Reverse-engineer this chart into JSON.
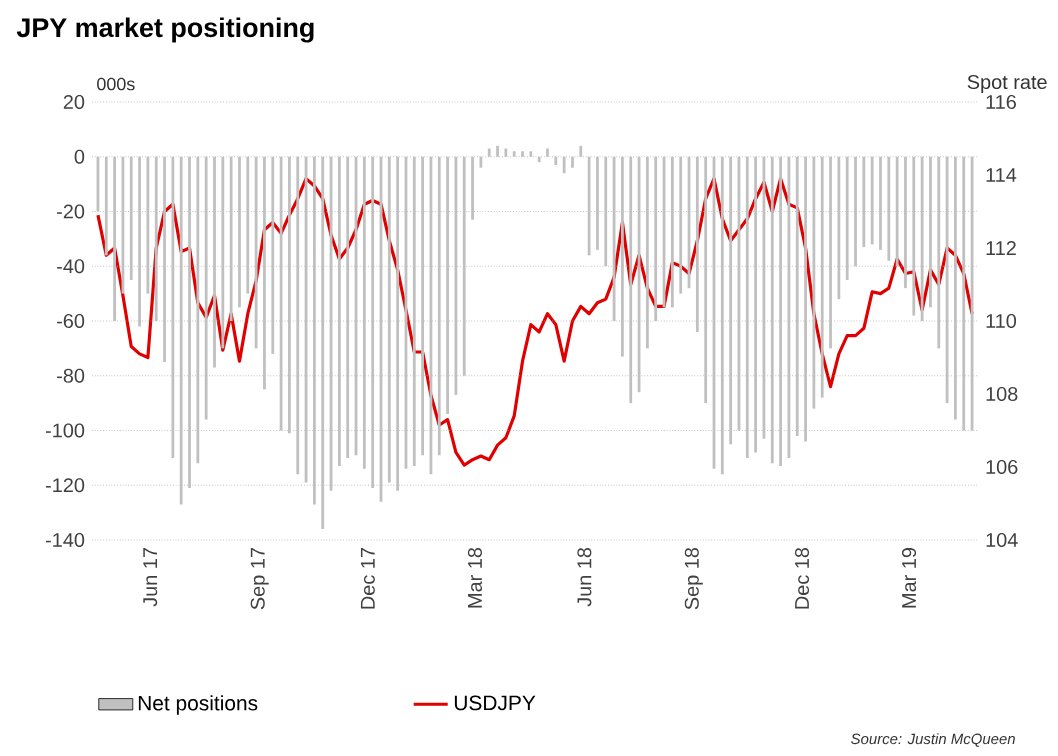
{
  "chart_data": {
    "type": "bar",
    "title": "JPY market positioning",
    "ylabel": "000s",
    "y2label": "Spot rate",
    "annotations": [
      "Source: Justin McQueen"
    ],
    "x": [
      "2017-04-18",
      "2017-04-25",
      "2017-05-02",
      "2017-05-09",
      "2017-05-16",
      "2017-05-23",
      "2017-05-30",
      "2017-06-06",
      "2017-06-13",
      "2017-06-20",
      "2017-06-27",
      "2017-07-04",
      "2017-07-11",
      "2017-07-18",
      "2017-07-25",
      "2017-08-01",
      "2017-08-08",
      "2017-08-15",
      "2017-08-22",
      "2017-08-29",
      "2017-09-05",
      "2017-09-12",
      "2017-09-19",
      "2017-09-26",
      "2017-10-03",
      "2017-10-10",
      "2017-10-17",
      "2017-10-24",
      "2017-10-31",
      "2017-11-07",
      "2017-11-14",
      "2017-11-21",
      "2017-11-28",
      "2017-12-05",
      "2017-12-12",
      "2017-12-19",
      "2017-12-26",
      "2018-01-02",
      "2018-01-09",
      "2018-01-16",
      "2018-01-23",
      "2018-01-30",
      "2018-02-06",
      "2018-02-13",
      "2018-02-20",
      "2018-02-27",
      "2018-03-06",
      "2018-03-13",
      "2018-03-20",
      "2018-03-27",
      "2018-04-03",
      "2018-04-10",
      "2018-04-17",
      "2018-04-24",
      "2018-05-01",
      "2018-05-08",
      "2018-05-15",
      "2018-05-22",
      "2018-05-29",
      "2018-06-05",
      "2018-06-12",
      "2018-06-19",
      "2018-06-26",
      "2018-07-03",
      "2018-07-10",
      "2018-07-17",
      "2018-07-24",
      "2018-07-31",
      "2018-08-07",
      "2018-08-14",
      "2018-08-21",
      "2018-08-28",
      "2018-09-04",
      "2018-09-11",
      "2018-09-18",
      "2018-09-25",
      "2018-10-02",
      "2018-10-09",
      "2018-10-16",
      "2018-10-23",
      "2018-10-30",
      "2018-11-06",
      "2018-11-13",
      "2018-11-20",
      "2018-11-27",
      "2018-12-04",
      "2018-12-11",
      "2018-12-18",
      "2018-12-25",
      "2019-01-01",
      "2019-01-08",
      "2019-01-15",
      "2019-01-22",
      "2019-01-29",
      "2019-02-05",
      "2019-02-12",
      "2019-02-19",
      "2019-02-26",
      "2019-03-05",
      "2019-03-12",
      "2019-03-19",
      "2019-03-26",
      "2019-04-02",
      "2019-04-09",
      "2019-04-16",
      "2019-04-23"
    ],
    "series": [
      {
        "name": "Net positions",
        "color": "#c0c0c0",
        "values": [
          -20,
          -36,
          -60,
          -50,
          -45,
          -62,
          -50,
          -60,
          -75,
          -110,
          -127,
          -121,
          -112,
          -96,
          -77,
          -70,
          -60,
          -55,
          -50,
          -70,
          -85,
          -72,
          -100,
          -101,
          -116,
          -119,
          -127,
          -136,
          -122,
          -113,
          -110,
          -109,
          -114,
          -121,
          -126,
          -119,
          -122,
          -114,
          -113,
          -109,
          -116,
          -109,
          -94,
          -87,
          -80,
          -23,
          -4,
          3,
          4,
          3,
          2,
          2,
          2,
          -2,
          3,
          -3,
          -6,
          -4,
          4,
          -36,
          -34,
          -40,
          -60,
          -73,
          -90,
          -86,
          -70,
          -60,
          -55,
          -55,
          -50,
          -48,
          -64,
          -90,
          -114,
          -116,
          -105,
          -100,
          -110,
          -108,
          -103,
          -112,
          -113,
          -110,
          -102,
          -104,
          -92,
          -88,
          -70,
          -52,
          -45,
          -40,
          -33,
          -32,
          -34,
          -38,
          -40,
          -48,
          -58,
          -60,
          -55,
          -70,
          -90,
          -96,
          -100,
          -100
        ]
      },
      {
        "name": "USDJPY",
        "type": "line",
        "axis": "y2",
        "color": "#e00000",
        "values": [
          112.9,
          111.8,
          112.0,
          110.7,
          109.3,
          109.1,
          109.0,
          112.0,
          113.0,
          113.2,
          111.9,
          112.0,
          110.5,
          110.1,
          110.7,
          109.2,
          110.2,
          108.9,
          110.2,
          111.1,
          112.5,
          112.7,
          112.4,
          112.9,
          113.35,
          113.9,
          113.7,
          113.35,
          112.35,
          111.7,
          112.0,
          112.5,
          113.2,
          113.3,
          113.2,
          112.2,
          111.4,
          110.3,
          109.15,
          109.15,
          107.96,
          107.15,
          107.3,
          106.4,
          106.05,
          106.2,
          106.3,
          106.2,
          106.6,
          106.8,
          107.4,
          108.9,
          109.9,
          109.7,
          110.2,
          109.9,
          108.9,
          110.0,
          110.4,
          110.2,
          110.5,
          110.6,
          111.2,
          112.7,
          111.0,
          111.8,
          110.9,
          110.4,
          110.4,
          111.6,
          111.5,
          111.3,
          112.2,
          113.35,
          113.9,
          112.8,
          112.2,
          112.5,
          112.8,
          113.35,
          113.8,
          113.0,
          113.9,
          113.2,
          113.1,
          112.0,
          110.2,
          109.1,
          108.2,
          109.1,
          109.6,
          109.6,
          109.8,
          110.8,
          110.75,
          110.9,
          111.7,
          111.3,
          111.35,
          110.3,
          111.4,
          111.0,
          112.0,
          111.8,
          111.3,
          110.2
        ]
      }
    ],
    "xlim": [
      "2017-04-13",
      "2019-04-28"
    ],
    "xticks": [
      {
        "value": "2017-06-01",
        "label": "Jun 17"
      },
      {
        "value": "2017-09-01",
        "label": "Sep 17"
      },
      {
        "value": "2017-12-01",
        "label": "Dec 17"
      },
      {
        "value": "2018-03-01",
        "label": "Mar 18"
      },
      {
        "value": "2018-06-01",
        "label": "Jun 18"
      },
      {
        "value": "2018-09-01",
        "label": "Sep 18"
      },
      {
        "value": "2018-12-01",
        "label": "Dec 18"
      },
      {
        "value": "2019-03-01",
        "label": "Mar 19"
      }
    ],
    "ylim": [
      -140,
      20
    ],
    "yticks": [
      -140,
      -120,
      -100,
      -80,
      -60,
      -40,
      -20,
      0,
      20
    ],
    "y2lim": [
      104,
      116
    ],
    "y2ticks": [
      104,
      106,
      108,
      110,
      112,
      114,
      116
    ],
    "grid": "y",
    "legend": "bottom"
  }
}
